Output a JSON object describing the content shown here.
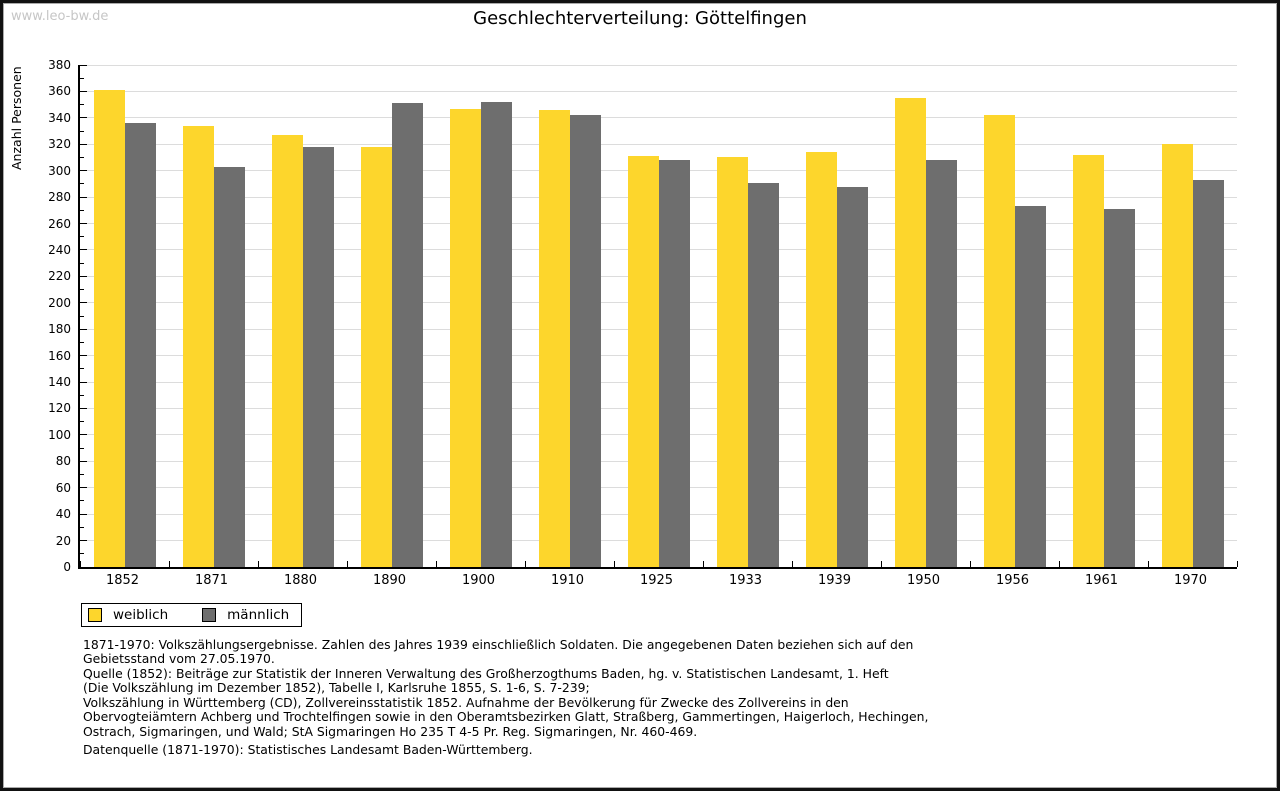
{
  "watermark": "www.leo-bw.de",
  "title": "Geschlechterverteilung: Göttelfingen",
  "chart_data": {
    "type": "bar",
    "title": "Geschlechterverteilung: Göttelfingen",
    "xlabel": "",
    "ylabel": "Anzahl Personen",
    "ylim": [
      0,
      380
    ],
    "ytick_major_step": 20,
    "ytick_minor_step": 10,
    "grid": true,
    "legend_position": "bottom-left",
    "categories": [
      "1852",
      "1871",
      "1880",
      "1890",
      "1900",
      "1910",
      "1925",
      "1933",
      "1939",
      "1950",
      "1956",
      "1961",
      "1970"
    ],
    "series": [
      {
        "name": "weiblich",
        "color": "#FDD62C",
        "values": [
          361,
          334,
          327,
          318,
          347,
          346,
          311,
          310,
          314,
          355,
          342,
          312,
          320
        ]
      },
      {
        "name": "männlich",
        "color": "#6E6E6E",
        "values": [
          336,
          303,
          318,
          351,
          352,
          342,
          308,
          291,
          288,
          308,
          273,
          271,
          293
        ]
      }
    ]
  },
  "legend": {
    "items": [
      {
        "label": "weiblich",
        "color": "#FDD62C"
      },
      {
        "label": "männlich",
        "color": "#6E6E6E"
      }
    ]
  },
  "footnotes": [
    "1871-1970: Volkszählungsergebnisse. Zahlen des Jahres 1939 einschließlich Soldaten. Die angegebenen Daten beziehen sich auf den",
    "Gebietsstand vom 27.05.1970.",
    "Quelle (1852): Beiträge zur Statistik der Inneren Verwaltung des Großherzogthums Baden, hg. v. Statistischen Landesamt, 1. Heft",
    "(Die Volkszählung im Dezember 1852), Tabelle I, Karlsruhe 1855, S. 1-6, S. 7-239;",
    "Volkszählung in Württemberg (CD), Zollvereinsstatistik 1852. Aufnahme der Bevölkerung für Zwecke des Zollvereins in den",
    "Obervogteiämtern Achberg und Trochtelfingen sowie in den Oberamtsbezirken Glatt, Straßberg, Gammertingen, Haigerloch, Hechingen,",
    "Ostrach, Sigmaringen, und Wald; StA Sigmaringen Ho 235 T 4-5 Pr. Reg. Sigmaringen, Nr. 460-469."
  ],
  "datasource": "Datenquelle (1871-1970): Statistisches Landesamt Baden-Württemberg."
}
